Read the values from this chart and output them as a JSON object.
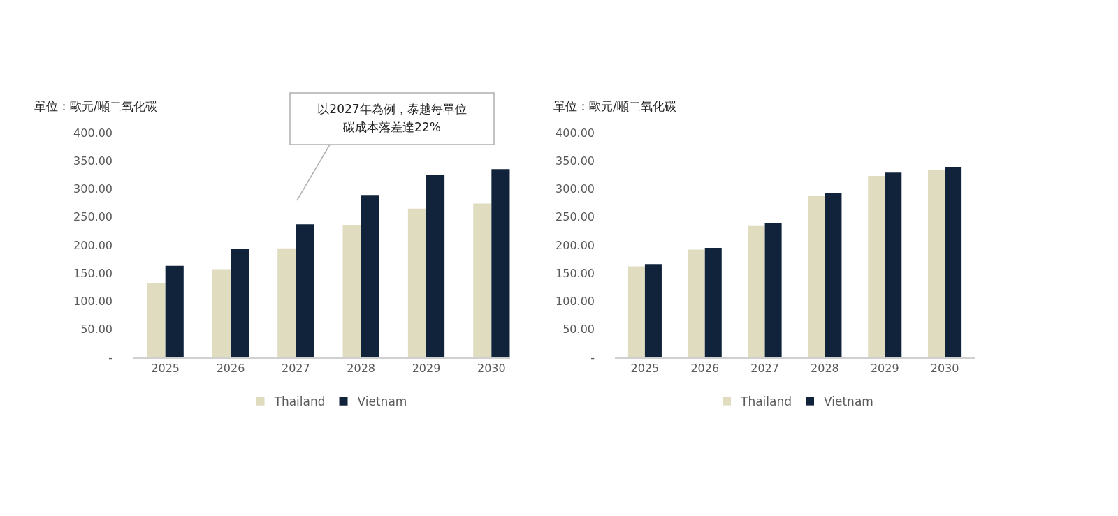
{
  "chart_data": [
    {
      "type": "bar",
      "ylabel": "單位：歐元/噸二氧化碳",
      "legend": "bottom",
      "annotations": [
        "以2027年為例，泰越每單位碳成本落差達22%"
      ],
      "categories": [
        "2025",
        "2026",
        "2027",
        "2028",
        "2029",
        "2030"
      ],
      "series": [
        {
          "name": "Thailand",
          "color": "#dfdcc0",
          "values": [
            133,
            157,
            194,
            236,
            265,
            274
          ]
        },
        {
          "name": "Vietnam",
          "color": "#10233a",
          "values": [
            163,
            193,
            237,
            289,
            325,
            335
          ]
        }
      ],
      "ylim": [
        0,
        400
      ],
      "yticks": [
        {
          "value": 0,
          "label": "-"
        },
        {
          "value": 50,
          "label": "50.00"
        },
        {
          "value": 100,
          "label": "100.00"
        },
        {
          "value": 150,
          "label": "150.00"
        },
        {
          "value": 200,
          "label": "200.00"
        },
        {
          "value": 250,
          "label": "250.00"
        },
        {
          "value": 300,
          "label": "300.00"
        },
        {
          "value": 350,
          "label": "350.00"
        },
        {
          "value": 400,
          "label": "400.00"
        }
      ]
    },
    {
      "type": "bar",
      "ylabel": "單位：歐元/噸二氧化碳",
      "legend": "bottom",
      "categories": [
        "2025",
        "2026",
        "2027",
        "2028",
        "2029",
        "2030"
      ],
      "series": [
        {
          "name": "Thailand",
          "color": "#dfdcc0",
          "values": [
            162,
            192,
            235,
            287,
            323,
            333
          ]
        },
        {
          "name": "Vietnam",
          "color": "#10233a",
          "values": [
            166,
            195,
            239,
            292,
            329,
            339
          ]
        }
      ],
      "ylim": [
        0,
        400
      ],
      "yticks": [
        {
          "value": 0,
          "label": "-"
        },
        {
          "value": 50,
          "label": "50.00"
        },
        {
          "value": 100,
          "label": "100.00"
        },
        {
          "value": 150,
          "label": "150.00"
        },
        {
          "value": 200,
          "label": "200.00"
        },
        {
          "value": 250,
          "label": "250.00"
        },
        {
          "value": 300,
          "label": "300.00"
        },
        {
          "value": 350,
          "label": "350.00"
        },
        {
          "value": 400,
          "label": "400.00"
        }
      ]
    }
  ]
}
